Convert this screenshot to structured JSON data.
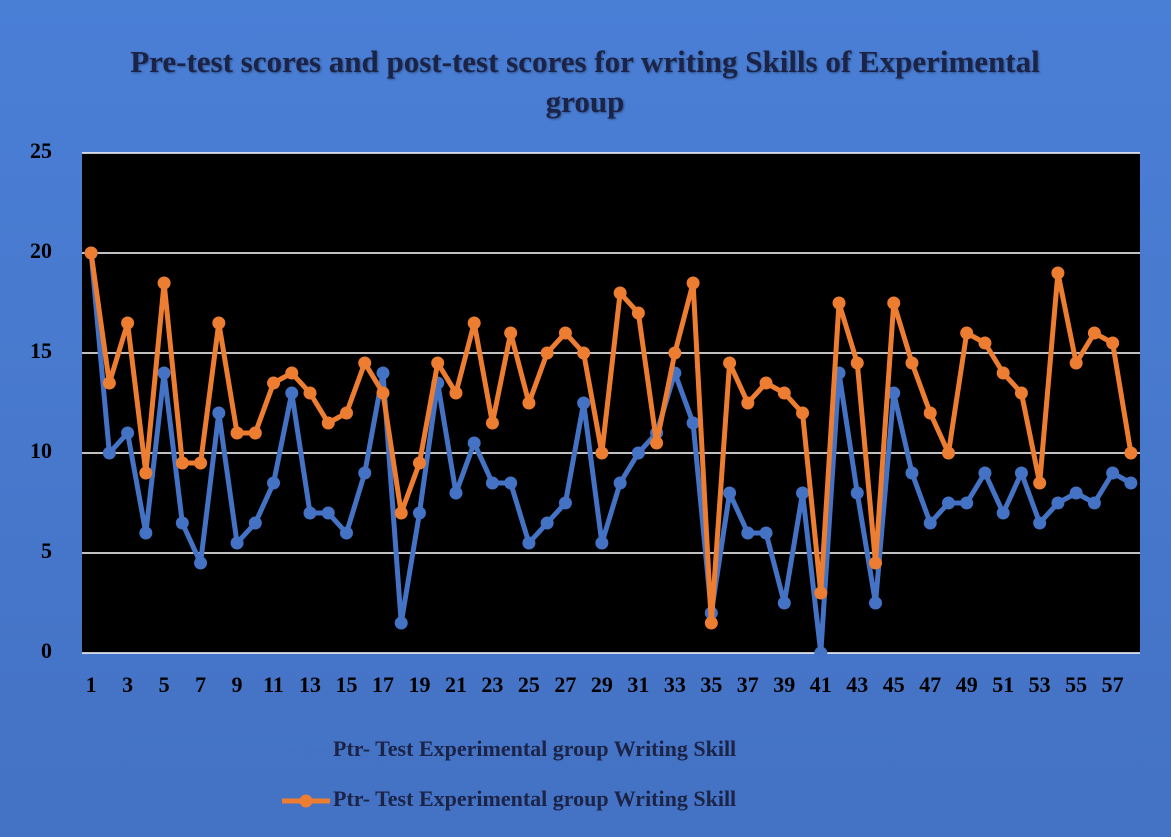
{
  "chart_data": {
    "type": "line",
    "title": "Pre-test scores and post-test scores for writing Skills of Experimental group",
    "categories": [
      1,
      null,
      3,
      null,
      5,
      null,
      7,
      null,
      9,
      null,
      11,
      null,
      13,
      null,
      15,
      null,
      17,
      null,
      19,
      null,
      21,
      null,
      23,
      null,
      25,
      null,
      27,
      null,
      29,
      null,
      31,
      null,
      33,
      null,
      35,
      null,
      37,
      null,
      39,
      null,
      41,
      null,
      43,
      null,
      45,
      null,
      47,
      null,
      49,
      null,
      51,
      null,
      53,
      null,
      55,
      null,
      57,
      null
    ],
    "series": [
      {
        "name": "Ptr- Test Experimental group Writing Skill",
        "color": "#4472c4",
        "values": [
          20,
          10,
          11,
          6,
          14,
          6.5,
          4.5,
          12,
          5.5,
          6.5,
          8.5,
          13,
          7,
          7,
          6,
          9,
          14,
          1.5,
          7,
          13.5,
          8,
          10.5,
          8.5,
          8.5,
          5.5,
          6.5,
          7.5,
          12.5,
          5.5,
          8.5,
          10,
          11,
          14,
          11.5,
          2,
          8,
          6,
          6,
          2.5,
          8,
          0,
          14,
          8,
          2.5,
          13,
          9,
          6.5,
          7.5,
          7.5,
          9,
          7,
          9,
          6.5,
          7.5,
          8,
          7.5,
          9,
          8.5
        ]
      },
      {
        "name": "Ptr- Test Experimental group Writing Skill",
        "color": "#ed7d31",
        "values": [
          20,
          13.5,
          16.5,
          9,
          18.5,
          9.5,
          9.5,
          16.5,
          11,
          11,
          13.5,
          14,
          13,
          11.5,
          12,
          14.5,
          13,
          7,
          9.5,
          14.5,
          13,
          16.5,
          11.5,
          16,
          12.5,
          15,
          16,
          15,
          10,
          18,
          17,
          10.5,
          15,
          18.5,
          1.5,
          14.5,
          12.5,
          13.5,
          13,
          12,
          3,
          17.5,
          14.5,
          4.5,
          17.5,
          14.5,
          12,
          10,
          16,
          15.5,
          14,
          13,
          8.5,
          19,
          14.5,
          16,
          15.5,
          10
        ]
      }
    ],
    "ylim": [
      0,
      25
    ],
    "yticks": [
      0,
      5,
      10,
      15,
      20,
      25
    ],
    "grid": true,
    "legend": "bottom"
  }
}
